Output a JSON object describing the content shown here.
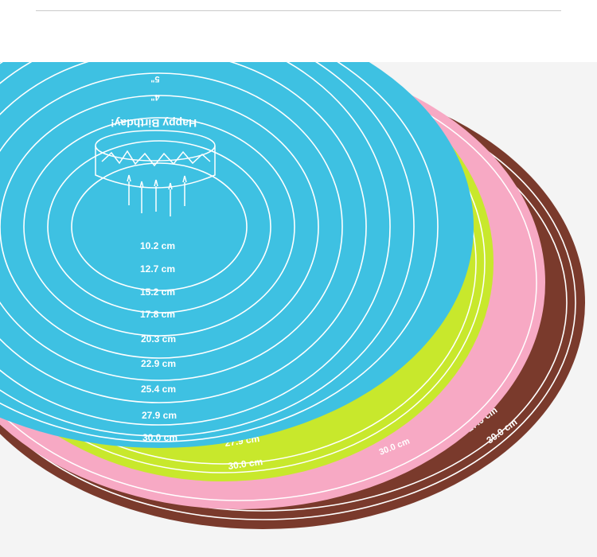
{
  "colors": {
    "background": "#f4f4f4",
    "brown_mat": "#7a3a2c",
    "pink_mat": "#f7a9c4",
    "yellow_mat": "#c8e82c",
    "blue_mat": "#3ec1e2",
    "ring": "#ffffff"
  },
  "mat_labels": {
    "brown": [
      "27.9 cm",
      "30.0 cm"
    ],
    "pink": [
      "30.0 cm"
    ],
    "yellow": [
      "27.9 cm",
      "30.0 cm"
    ]
  },
  "blue_mat": {
    "inch_marks": [
      "4\"",
      "5\""
    ],
    "greeting": "Happy Birthday!",
    "ring_labels": [
      "10.2 cm",
      "12.7 cm",
      "15.2 cm",
      "17.8 cm",
      "20.3 cm",
      "22.9 cm",
      "25.4 cm",
      "27.9 cm",
      "30.0 cm"
    ]
  }
}
